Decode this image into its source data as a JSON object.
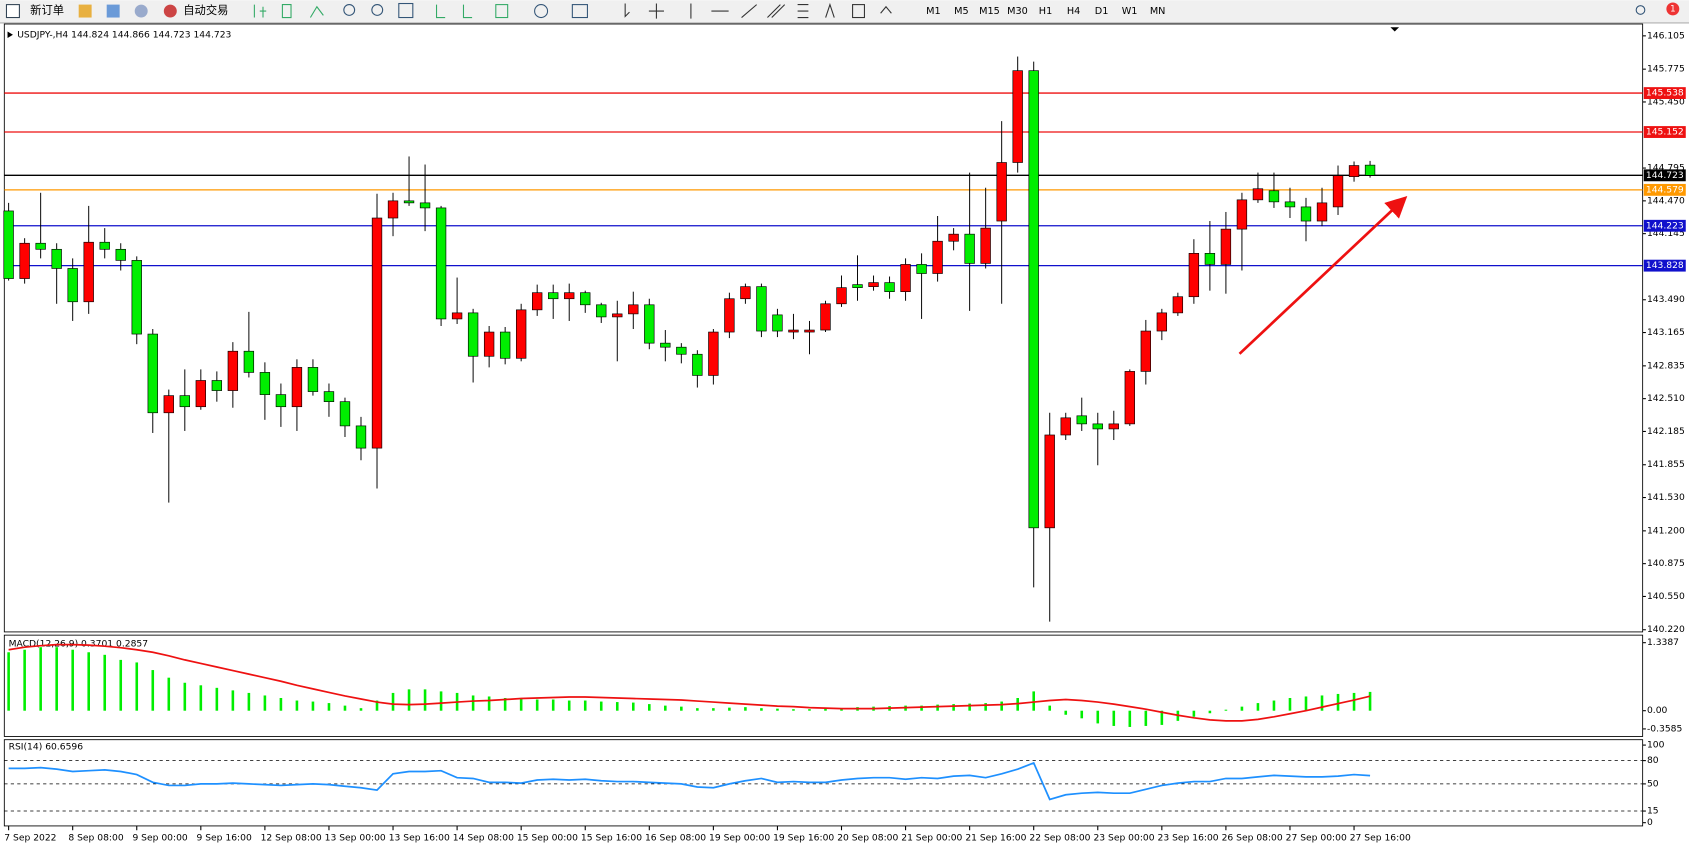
{
  "toolbar": {
    "new_order": "新订单",
    "auto_trading": "自动交易",
    "timeframes": [
      "M1",
      "M5",
      "M15",
      "M30",
      "H1",
      "H4",
      "D1",
      "W1",
      "MN"
    ],
    "notifications": "1"
  },
  "chart_data": [
    {
      "type": "candlestick",
      "title": "USDJPY-,H4  144.824 144.866 144.723 144.723",
      "up_color": "#ff0000",
      "down_color": "#00ee00",
      "ylim": [
        140.22,
        146.105
      ],
      "yticks": [
        146.105,
        145.775,
        {
          "value": 145.45,
          "label": "145.450"
        },
        144.795,
        {
          "value": 144.47,
          "label": "144.470"
        },
        144.145,
        {
          "value": 143.49,
          "label": "143.490"
        },
        143.165,
        142.835,
        {
          "value": 142.51,
          "label": "142.510"
        },
        142.185,
        141.855,
        {
          "value": 141.53,
          "label": "141.530"
        },
        {
          "value": 141.2,
          "label": "141.200"
        },
        140.875,
        {
          "value": 140.55,
          "label": "140.550"
        },
        {
          "value": 140.22,
          "label": "140.220"
        }
      ],
      "grid": false,
      "hlines": [
        {
          "value": 145.538,
          "color": "#ee1111"
        },
        {
          "value": 145.152,
          "color": "#ee1111"
        },
        {
          "value": 144.723,
          "color": "#000000"
        },
        {
          "value": 144.579,
          "color": "#ff9900"
        },
        {
          "value": 144.223,
          "color": "#1010cc"
        },
        {
          "value": 143.828,
          "color": "#1010cc"
        }
      ],
      "categories": [
        "7 Sep 2022",
        null,
        null,
        null,
        "8 Sep 08:00",
        null,
        null,
        null,
        "9 Sep 00:00",
        null,
        null,
        null,
        "9 Sep 16:00",
        null,
        null,
        null,
        "12 Sep 08:00",
        null,
        null,
        null,
        "13 Sep 00:00",
        null,
        null,
        null,
        "13 Sep 16:00",
        null,
        null,
        null,
        "14 Sep 08:00",
        null,
        null,
        null,
        "15 Sep 00:00",
        null,
        null,
        null,
        "15 Sep 16:00",
        null,
        null,
        null,
        "16 Sep 08:00",
        null,
        null,
        null,
        "19 Sep 00:00",
        null,
        null,
        null,
        "19 Sep 16:00",
        null,
        null,
        null,
        "20 Sep 08:00",
        null,
        null,
        null,
        "21 Sep 00:00",
        null,
        null,
        null,
        "21 Sep 16:00",
        null,
        null,
        null,
        "22 Sep 08:00",
        null,
        null,
        null,
        "23 Sep 00:00",
        null,
        null,
        null,
        "23 Sep 16:00",
        null,
        null,
        null,
        "26 Sep 08:00",
        null,
        null,
        null,
        "27 Sep 00:00",
        null,
        null,
        null,
        "27 Sep 16:00",
        null
      ],
      "open": [
        144.37,
        143.7,
        144.05,
        143.99,
        143.8,
        143.47,
        144.06,
        143.99,
        143.88,
        143.15,
        142.37,
        142.54,
        142.43,
        142.69,
        142.59,
        142.98,
        142.77,
        142.55,
        142.43,
        142.82,
        142.58,
        142.48,
        142.24,
        142.02,
        144.3,
        144.47,
        144.45,
        144.4,
        143.3,
        143.36,
        142.93,
        143.17,
        142.91,
        143.39,
        143.56,
        143.5,
        143.56,
        143.44,
        143.32,
        143.35,
        143.44,
        143.06,
        143.02,
        142.95,
        142.74,
        143.17,
        143.5,
        143.62,
        143.34,
        143.17,
        143.17,
        143.19,
        143.45,
        143.64,
        143.62,
        143.66,
        143.57,
        143.84,
        143.75,
        144.07,
        144.14,
        143.85,
        144.27,
        144.85,
        145.76,
        141.23,
        142.15,
        142.34,
        142.26,
        142.21,
        142.26,
        142.78,
        143.18,
        143.36,
        143.52,
        143.95,
        143.84,
        144.19,
        144.48,
        144.57,
        144.46,
        144.41,
        144.27,
        144.41,
        144.71,
        144.824
      ],
      "high": [
        144.45,
        144.1,
        144.55,
        144.05,
        143.9,
        144.42,
        144.2,
        144.05,
        143.92,
        143.2,
        142.6,
        142.8,
        142.8,
        142.78,
        143.07,
        143.37,
        142.87,
        142.66,
        142.9,
        142.9,
        142.66,
        142.52,
        142.33,
        144.54,
        144.55,
        144.91,
        144.83,
        144.42,
        143.71,
        143.4,
        143.23,
        143.22,
        143.45,
        143.64,
        143.64,
        143.65,
        143.58,
        143.46,
        143.48,
        143.57,
        143.5,
        143.19,
        143.06,
        142.99,
        143.2,
        143.56,
        143.65,
        143.65,
        143.4,
        143.35,
        143.28,
        143.48,
        143.73,
        143.93,
        143.73,
        143.72,
        143.9,
        143.95,
        144.32,
        144.2,
        144.75,
        144.6,
        145.26,
        145.9,
        145.85,
        142.37,
        142.37,
        142.52,
        142.37,
        142.39,
        142.8,
        143.29,
        143.4,
        143.56,
        144.09,
        144.27,
        144.36,
        144.55,
        144.75,
        144.75,
        144.6,
        144.5,
        144.6,
        144.82,
        144.86,
        144.866
      ],
      "low": [
        143.68,
        143.65,
        143.9,
        143.45,
        143.28,
        143.35,
        143.9,
        143.78,
        143.05,
        142.17,
        141.48,
        142.19,
        142.4,
        142.48,
        142.42,
        142.72,
        142.3,
        142.23,
        142.19,
        142.54,
        142.33,
        142.13,
        141.9,
        141.62,
        144.12,
        144.42,
        144.17,
        143.23,
        143.25,
        142.67,
        142.82,
        142.85,
        142.88,
        143.33,
        143.3,
        143.28,
        143.36,
        143.26,
        142.88,
        143.2,
        143.0,
        142.88,
        142.86,
        142.62,
        142.65,
        143.11,
        143.45,
        143.12,
        143.12,
        143.1,
        142.95,
        143.17,
        143.42,
        143.48,
        143.58,
        143.5,
        143.48,
        143.3,
        143.67,
        143.98,
        143.38,
        143.8,
        143.45,
        144.75,
        140.64,
        140.3,
        142.1,
        142.19,
        141.85,
        142.1,
        142.24,
        142.65,
        143.09,
        143.33,
        143.45,
        143.58,
        143.55,
        143.78,
        144.45,
        144.4,
        144.3,
        144.07,
        144.22,
        144.33,
        144.66,
        144.7
      ],
      "close": [
        143.7,
        144.05,
        143.99,
        143.8,
        143.47,
        144.06,
        143.99,
        143.88,
        143.15,
        142.37,
        142.54,
        142.43,
        142.69,
        142.59,
        142.98,
        142.77,
        142.55,
        142.43,
        142.82,
        142.58,
        142.48,
        142.24,
        142.02,
        144.3,
        144.47,
        144.45,
        144.4,
        143.3,
        143.36,
        142.93,
        143.17,
        142.91,
        143.39,
        143.56,
        143.5,
        143.56,
        143.44,
        143.32,
        143.35,
        143.44,
        143.06,
        143.02,
        142.95,
        142.74,
        143.17,
        143.5,
        143.62,
        143.18,
        143.18,
        143.19,
        143.19,
        143.45,
        143.61,
        143.61,
        143.66,
        143.57,
        143.84,
        143.75,
        144.07,
        144.14,
        143.85,
        144.2,
        144.85,
        145.76,
        141.23,
        142.15,
        142.32,
        142.26,
        142.21,
        142.26,
        142.78,
        143.18,
        143.36,
        143.52,
        143.95,
        143.84,
        144.19,
        144.48,
        144.59,
        144.46,
        144.41,
        144.27,
        144.45,
        144.72,
        144.82,
        144.723
      ]
    },
    {
      "type": "bar",
      "title": "MACD(12,26,9) 0.3701 0.2857",
      "ylim": [
        -0.3585,
        1.3387
      ],
      "yticks": [
        1.3387,
        {
          "value": 0,
          "label": "0.00"
        },
        -0.3585
      ],
      "series": [
        {
          "type": "bar",
          "color": "#00ee00",
          "values": [
            1.15,
            1.2,
            1.25,
            1.25,
            1.2,
            1.15,
            1.1,
            1.0,
            0.95,
            0.8,
            0.65,
            0.55,
            0.5,
            0.45,
            0.4,
            0.35,
            0.3,
            0.25,
            0.2,
            0.18,
            0.15,
            0.1,
            0.05,
            0.2,
            0.35,
            0.42,
            0.42,
            0.38,
            0.35,
            0.3,
            0.28,
            0.25,
            0.24,
            0.22,
            0.22,
            0.2,
            0.2,
            0.18,
            0.17,
            0.16,
            0.13,
            0.1,
            0.08,
            0.05,
            0.05,
            0.06,
            0.07,
            0.05,
            0.04,
            0.03,
            0.03,
            0.04,
            0.05,
            0.07,
            0.08,
            0.09,
            0.1,
            0.1,
            0.12,
            0.13,
            0.14,
            0.15,
            0.18,
            0.25,
            0.38,
            0.1,
            -0.08,
            -0.15,
            -0.25,
            -0.3,
            -0.32,
            -0.3,
            -0.28,
            -0.2,
            -0.12,
            -0.05,
            0.02,
            0.08,
            0.15,
            0.2,
            0.25,
            0.28,
            0.3,
            0.33,
            0.35,
            0.3701
          ]
        },
        {
          "type": "line",
          "color": "#ee1111",
          "values": [
            1.2,
            1.25,
            1.28,
            1.3,
            1.3,
            1.29,
            1.27,
            1.24,
            1.2,
            1.15,
            1.08,
            1.0,
            0.93,
            0.86,
            0.79,
            0.72,
            0.65,
            0.58,
            0.5,
            0.43,
            0.36,
            0.29,
            0.23,
            0.17,
            0.13,
            0.12,
            0.13,
            0.15,
            0.17,
            0.19,
            0.2,
            0.22,
            0.24,
            0.25,
            0.26,
            0.27,
            0.27,
            0.26,
            0.25,
            0.24,
            0.23,
            0.22,
            0.21,
            0.19,
            0.17,
            0.15,
            0.13,
            0.11,
            0.09,
            0.08,
            0.06,
            0.05,
            0.04,
            0.04,
            0.04,
            0.05,
            0.06,
            0.07,
            0.08,
            0.09,
            0.1,
            0.11,
            0.12,
            0.14,
            0.17,
            0.2,
            0.22,
            0.2,
            0.17,
            0.13,
            0.08,
            0.03,
            -0.03,
            -0.09,
            -0.14,
            -0.18,
            -0.2,
            -0.2,
            -0.17,
            -0.12,
            -0.06,
            0.0,
            0.07,
            0.14,
            0.21,
            0.2857
          ]
        }
      ]
    },
    {
      "type": "line",
      "title": "RSI(14) 60.6596",
      "ylim": [
        0,
        100
      ],
      "yticks": [
        100,
        80,
        50,
        15,
        0
      ],
      "levels": [
        80,
        50,
        15
      ],
      "series": [
        {
          "color": "#1e90ff",
          "values": [
            70,
            70,
            71,
            69,
            66,
            67,
            68,
            66,
            62,
            52,
            48,
            48,
            50,
            50,
            51,
            50,
            49,
            48,
            49,
            50,
            49,
            47,
            45,
            42,
            63,
            66,
            66,
            67,
            58,
            57,
            52,
            52,
            51,
            55,
            56,
            55,
            56,
            54,
            53,
            53,
            52,
            51,
            50,
            46,
            45,
            50,
            54,
            57,
            52,
            53,
            52,
            52,
            55,
            57,
            58,
            58,
            56,
            58,
            57,
            60,
            61,
            58,
            63,
            69,
            77,
            30,
            36,
            38,
            39,
            38,
            38,
            43,
            48,
            51,
            53,
            53,
            57,
            57,
            59,
            61,
            60,
            59,
            59,
            60,
            62,
            60.6596
          ]
        }
      ]
    }
  ]
}
